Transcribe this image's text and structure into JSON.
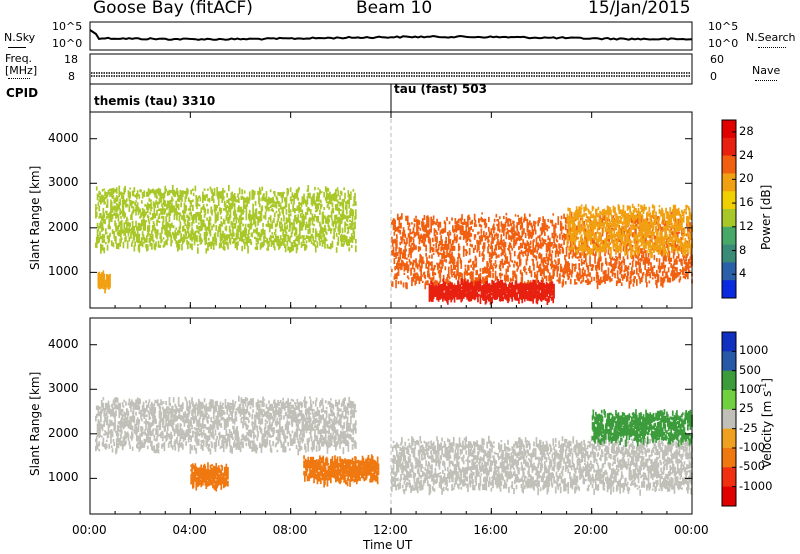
{
  "header": {
    "title": "Goose Bay (fitACF)",
    "beam": "Beam 10",
    "date": "15/Jan/2015"
  },
  "noise_panel": {
    "left_label": "N.Sky",
    "left_ticks": [
      "10^5",
      "10^0"
    ],
    "right_ticks": [
      "10^5",
      "10^0"
    ],
    "right_label": "N.Search"
  },
  "freq_panel": {
    "left_label_1": "Freq.",
    "left_label_2": "[MHz]",
    "left_ticks": [
      "18",
      "8"
    ],
    "right_ticks": [
      "60",
      "0"
    ],
    "right_label": "Nave"
  },
  "cpid": {
    "label": "CPID",
    "segments": [
      {
        "name": "themis (tau) 3310",
        "start_hour": 0
      },
      {
        "name": "tau (fast) 503",
        "start_hour": 12
      }
    ]
  },
  "colors": {
    "power": [
      "#0a2ae0",
      "#2a60a8",
      "#3a8a78",
      "#48a868",
      "#a8c82a",
      "#f0d000",
      "#f0a010",
      "#f06010",
      "#e82010",
      "#e00000"
    ],
    "velocity": [
      "#1030c0",
      "#2858a8",
      "#3c9c3c",
      "#70d040",
      "#c0c0b8",
      "#f0a020",
      "#f07810",
      "#f03010",
      "#e00000"
    ],
    "ground_scatter": "#c0c0b8"
  },
  "chart_data": [
    {
      "type": "heatmap",
      "name": "power",
      "xlabel": "Time UT",
      "ylabel": "Slant Range [km]",
      "x_ticks": [
        "00:00",
        "04:00",
        "08:00",
        "12:00",
        "16:00",
        "20:00",
        "00:00"
      ],
      "xlim": [
        0,
        24
      ],
      "y_ticks": [
        1000,
        2000,
        3000,
        4000
      ],
      "ylim": [
        200,
        4600
      ],
      "colorbar": {
        "label": "Power [dB]",
        "ticks": [
          4,
          8,
          12,
          16,
          20,
          24,
          28
        ],
        "range": [
          0,
          30
        ]
      },
      "bands": [
        {
          "t0": 0.2,
          "t1": 10.6,
          "r_lo": 1600,
          "r_hi": 2900,
          "level": 14
        },
        {
          "t0": 0.3,
          "t1": 0.8,
          "r_lo": 700,
          "r_hi": 1000,
          "level": 20
        },
        {
          "t0": 12.0,
          "t1": 24.0,
          "r_lo": 800,
          "r_hi": 2300,
          "level": 22
        },
        {
          "t0": 13.5,
          "t1": 18.5,
          "r_lo": 450,
          "r_hi": 800,
          "level": 28
        },
        {
          "t0": 19.0,
          "t1": 24.0,
          "r_lo": 1500,
          "r_hi": 2500,
          "level": 20
        }
      ]
    },
    {
      "type": "heatmap",
      "name": "velocity",
      "xlabel": "Time UT",
      "ylabel": "Slant Range [km]",
      "x_ticks": [
        "00:00",
        "04:00",
        "08:00",
        "12:00",
        "16:00",
        "20:00",
        "00:00"
      ],
      "xlim": [
        0,
        24
      ],
      "y_ticks": [
        1000,
        2000,
        3000,
        4000
      ],
      "ylim": [
        200,
        4600
      ],
      "colorbar": {
        "label": "Velocity [m s^-1]",
        "ticks": [
          1000,
          500,
          100,
          25,
          -25,
          -100,
          -500,
          -1000
        ]
      },
      "bands": [
        {
          "t0": 0.2,
          "t1": 10.6,
          "r_lo": 1700,
          "r_hi": 2800,
          "value": 0
        },
        {
          "t0": 12.0,
          "t1": 24.0,
          "r_lo": 800,
          "r_hi": 1900,
          "value": 0
        },
        {
          "t0": 4.0,
          "t1": 5.5,
          "r_lo": 900,
          "r_hi": 1300,
          "value": -200
        },
        {
          "t0": 8.5,
          "t1": 11.5,
          "r_lo": 1000,
          "r_hi": 1500,
          "value": -150
        },
        {
          "t0": 20.0,
          "t1": 24.0,
          "r_lo": 1900,
          "r_hi": 2500,
          "value": 150
        }
      ]
    }
  ]
}
